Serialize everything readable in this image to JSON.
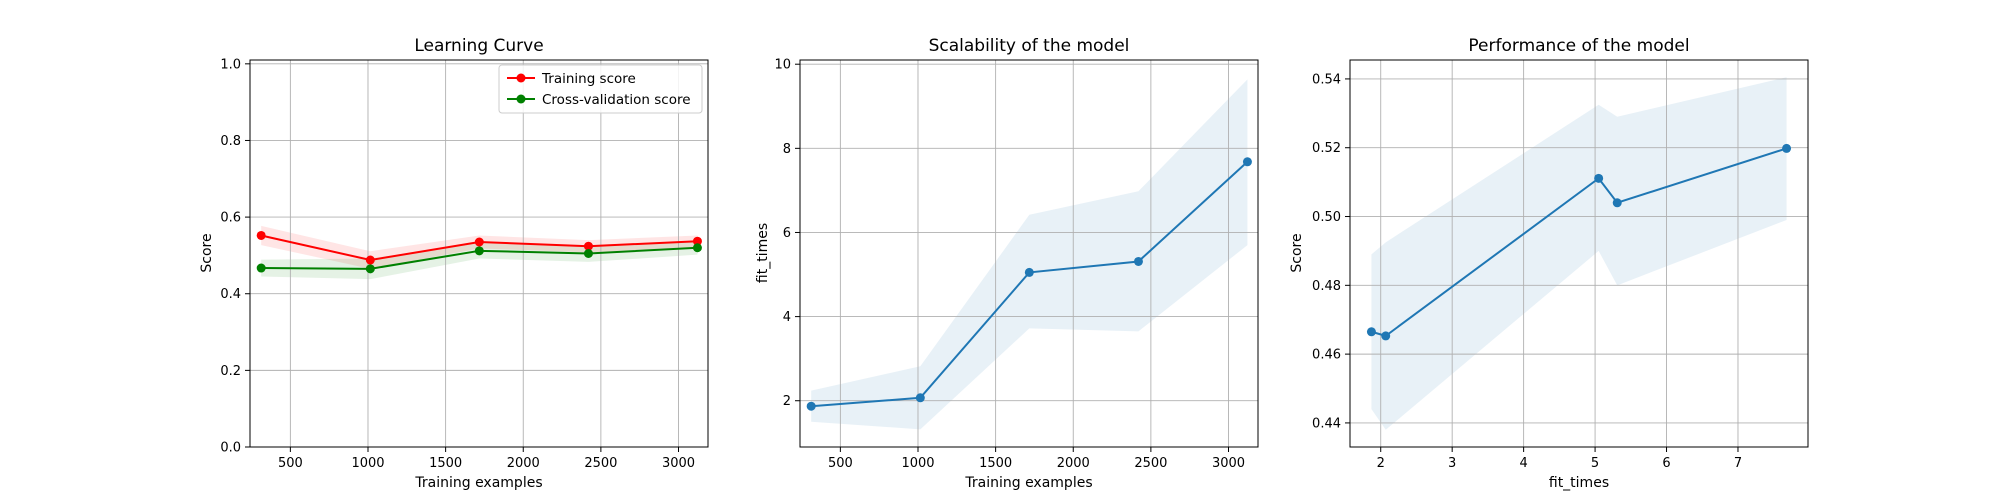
{
  "chart_data": [
    {
      "type": "line",
      "title": "Learning Curve",
      "xlabel": "Training examples",
      "ylabel": "Score",
      "xlim": [
        240,
        3190
      ],
      "ylim": [
        0.0,
        1.01
      ],
      "xticks": [
        500,
        1000,
        1500,
        2000,
        2500,
        3000
      ],
      "yticks": [
        0.0,
        0.2,
        0.4,
        0.6,
        0.8,
        1.0
      ],
      "xtick_labels": [
        "500",
        "1000",
        "1500",
        "2000",
        "2500",
        "3000"
      ],
      "ytick_labels": [
        "0.0",
        "0.2",
        "0.4",
        "0.6",
        "0.8",
        "1.0"
      ],
      "grid": true,
      "legend": "top-right",
      "x": [
        312,
        1015,
        1717,
        2420,
        3122
      ],
      "series": [
        {
          "name": "Training score",
          "color": "#ff0000",
          "band_color": "#ff0000",
          "values": [
            0.552,
            0.488,
            0.535,
            0.524,
            0.537
          ],
          "lower": [
            0.527,
            0.465,
            0.518,
            0.508,
            0.522
          ],
          "upper": [
            0.577,
            0.511,
            0.552,
            0.54,
            0.552
          ]
        },
        {
          "name": "Cross-validation score",
          "color": "#008000",
          "band_color": "#008000",
          "values": [
            0.467,
            0.465,
            0.512,
            0.505,
            0.52
          ],
          "lower": [
            0.445,
            0.438,
            0.492,
            0.483,
            0.502
          ],
          "upper": [
            0.489,
            0.492,
            0.532,
            0.527,
            0.538
          ]
        }
      ]
    },
    {
      "type": "line",
      "title": "Scalability of the model",
      "xlabel": "Training examples",
      "ylabel": "fit_times",
      "xlim": [
        240,
        3190
      ],
      "ylim": [
        0.9,
        10.1
      ],
      "xticks": [
        500,
        1000,
        1500,
        2000,
        2500,
        3000
      ],
      "yticks": [
        2,
        4,
        6,
        8,
        10
      ],
      "xtick_labels": [
        "500",
        "1000",
        "1500",
        "2000",
        "2500",
        "3000"
      ],
      "ytick_labels": [
        "2",
        "4",
        "6",
        "8",
        "10"
      ],
      "grid": true,
      "x": [
        312,
        1015,
        1717,
        2420,
        3122
      ],
      "series": [
        {
          "color": "#1f77b4",
          "band_color": "#1f77b4",
          "values": [
            1.87,
            2.07,
            5.05,
            5.31,
            7.68
          ],
          "lower": [
            1.5,
            1.32,
            3.72,
            3.65,
            5.7
          ],
          "upper": [
            2.24,
            2.82,
            6.42,
            6.98,
            9.64
          ]
        }
      ]
    },
    {
      "type": "line",
      "title": "Performance of the model",
      "xlabel": "fit_times",
      "ylabel": "Score",
      "xlim": [
        1.57,
        7.98
      ],
      "ylim": [
        0.433,
        0.5455
      ],
      "xticks": [
        2,
        3,
        4,
        5,
        6,
        7
      ],
      "yticks": [
        0.44,
        0.46,
        0.48,
        0.5,
        0.52,
        0.54
      ],
      "xtick_labels": [
        "2",
        "3",
        "4",
        "5",
        "6",
        "7"
      ],
      "ytick_labels": [
        "0.44",
        "0.46",
        "0.48",
        "0.50",
        "0.52",
        "0.54"
      ],
      "grid": true,
      "x": [
        1.87,
        2.07,
        5.05,
        5.31,
        7.68
      ],
      "series": [
        {
          "color": "#1f77b4",
          "band_color": "#1f77b4",
          "values": [
            0.4665,
            0.4653,
            0.5111,
            0.504,
            0.5198
          ],
          "lower": [
            0.444,
            0.438,
            0.49,
            0.48,
            0.499
          ],
          "upper": [
            0.489,
            0.4925,
            0.5325,
            0.529,
            0.5405
          ]
        }
      ]
    }
  ]
}
